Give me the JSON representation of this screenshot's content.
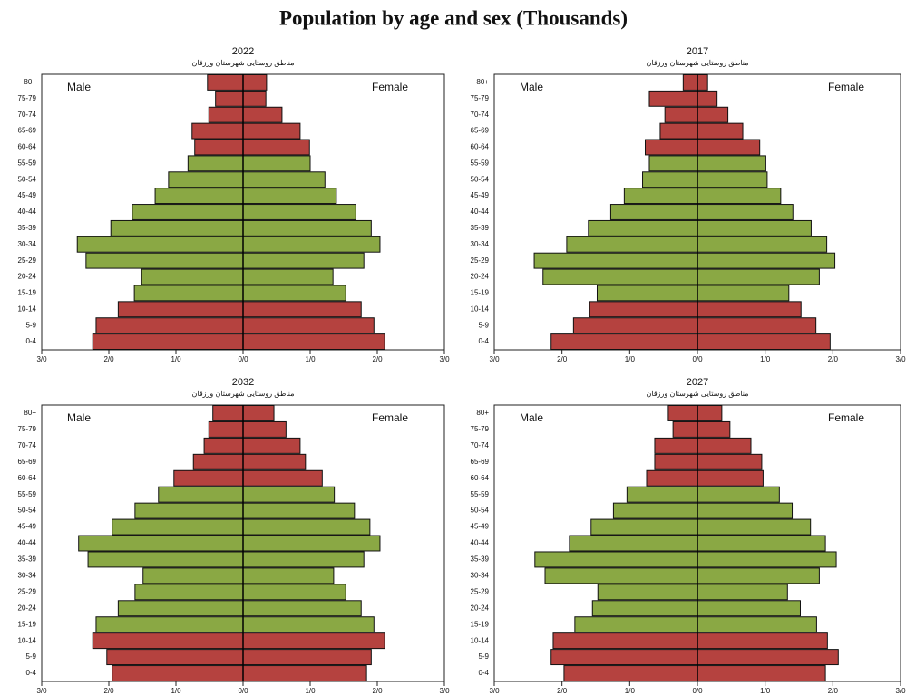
{
  "title": "Population by age and sex (Thousands)",
  "chart_data": [
    {
      "type": "pyramid",
      "title": "2022",
      "subtitle": "مناطق روستایی شهرستان ورزقان",
      "categories": [
        "0-4",
        "5-9",
        "10-14",
        "15-19",
        "20-24",
        "25-29",
        "30-34",
        "35-39",
        "40-44",
        "45-49",
        "50-54",
        "55-59",
        "60-64",
        "65-69",
        "70-74",
        "75-79",
        "80+"
      ],
      "colors": [
        "#b5423f",
        "#b5423f",
        "#b5423f",
        "#8aa844",
        "#8aa844",
        "#8aa844",
        "#8aa844",
        "#8aa844",
        "#8aa844",
        "#8aa844",
        "#8aa844",
        "#8aa844",
        "#b5423f",
        "#b5423f",
        "#b5423f",
        "#b5423f",
        "#b5423f"
      ],
      "series": [
        {
          "name": "Male",
          "values": [
            -2.24,
            -2.19,
            -1.86,
            -1.62,
            -1.51,
            -2.34,
            -2.47,
            -1.97,
            -1.65,
            -1.31,
            -1.11,
            -0.82,
            -0.72,
            -0.76,
            -0.51,
            -0.41,
            -0.53
          ]
        },
        {
          "name": "Female",
          "values": [
            2.11,
            1.95,
            1.76,
            1.53,
            1.34,
            1.8,
            2.04,
            1.91,
            1.68,
            1.39,
            1.22,
            1.0,
            0.99,
            0.85,
            0.58,
            0.34,
            0.35
          ]
        }
      ],
      "xlim": [
        -3,
        3
      ],
      "xticks": [
        {
          "value": -3,
          "label": "3/0"
        },
        {
          "value": -2,
          "label": "2/0"
        },
        {
          "value": -1,
          "label": "1/0"
        },
        {
          "value": 0,
          "label": "0/0"
        },
        {
          "value": 1,
          "label": "1/0"
        },
        {
          "value": 2,
          "label": "2/0"
        },
        {
          "value": 3,
          "label": "3/0"
        }
      ]
    },
    {
      "type": "pyramid",
      "title": "2017",
      "subtitle": "مناطق روستایی شهرستان ورزقان",
      "categories": [
        "0-4",
        "5-9",
        "10-14",
        "15-19",
        "20-24",
        "25-29",
        "30-34",
        "35-39",
        "40-44",
        "45-49",
        "50-54",
        "55-59",
        "60-64",
        "65-69",
        "70-74",
        "75-79",
        "80+"
      ],
      "colors": [
        "#b5423f",
        "#b5423f",
        "#b5423f",
        "#8aa844",
        "#8aa844",
        "#8aa844",
        "#8aa844",
        "#8aa844",
        "#8aa844",
        "#8aa844",
        "#8aa844",
        "#8aa844",
        "#b5423f",
        "#b5423f",
        "#b5423f",
        "#b5423f",
        "#b5423f"
      ],
      "series": [
        {
          "name": "Male",
          "values": [
            -2.16,
            -1.83,
            -1.59,
            -1.48,
            -2.28,
            -2.41,
            -1.93,
            -1.61,
            -1.28,
            -1.08,
            -0.81,
            -0.71,
            -0.77,
            -0.55,
            -0.48,
            -0.71,
            -0.21
          ]
        },
        {
          "name": "Female",
          "values": [
            1.96,
            1.75,
            1.53,
            1.35,
            1.8,
            2.03,
            1.91,
            1.68,
            1.41,
            1.23,
            1.03,
            1.01,
            0.92,
            0.67,
            0.45,
            0.29,
            0.15
          ]
        }
      ],
      "xlim": [
        -3,
        3
      ],
      "xticks": [
        {
          "value": -3,
          "label": "3/0"
        },
        {
          "value": -2,
          "label": "2/0"
        },
        {
          "value": -1,
          "label": "1/0"
        },
        {
          "value": 0,
          "label": "0/0"
        },
        {
          "value": 1,
          "label": "1/0"
        },
        {
          "value": 2,
          "label": "2/0"
        },
        {
          "value": 3,
          "label": "3/0"
        }
      ]
    },
    {
      "type": "pyramid",
      "title": "2032",
      "subtitle": "مناطق روستایی شهرستان ورزقان",
      "categories": [
        "0-4",
        "5-9",
        "10-14",
        "15-19",
        "20-24",
        "25-29",
        "30-34",
        "35-39",
        "40-44",
        "45-49",
        "50-54",
        "55-59",
        "60-64",
        "65-69",
        "70-74",
        "75-79",
        "80+"
      ],
      "colors": [
        "#b5423f",
        "#b5423f",
        "#b5423f",
        "#8aa844",
        "#8aa844",
        "#8aa844",
        "#8aa844",
        "#8aa844",
        "#8aa844",
        "#8aa844",
        "#8aa844",
        "#8aa844",
        "#b5423f",
        "#b5423f",
        "#b5423f",
        "#b5423f",
        "#b5423f"
      ],
      "series": [
        {
          "name": "Male",
          "values": [
            -1.95,
            -2.03,
            -2.24,
            -2.19,
            -1.86,
            -1.61,
            -1.49,
            -2.31,
            -2.45,
            -1.95,
            -1.61,
            -1.26,
            -1.03,
            -0.74,
            -0.58,
            -0.51,
            -0.45
          ]
        },
        {
          "name": "Female",
          "values": [
            1.84,
            1.91,
            2.11,
            1.95,
            1.76,
            1.53,
            1.35,
            1.8,
            2.04,
            1.89,
            1.66,
            1.36,
            1.18,
            0.93,
            0.85,
            0.64,
            0.46
          ]
        }
      ],
      "xlim": [
        -3,
        3
      ],
      "xticks": [
        {
          "value": -3,
          "label": "3/0"
        },
        {
          "value": -2,
          "label": "2/0"
        },
        {
          "value": -1,
          "label": "1/0"
        },
        {
          "value": 0,
          "label": "0/0"
        },
        {
          "value": 1,
          "label": "1/0"
        },
        {
          "value": 2,
          "label": "2/0"
        },
        {
          "value": 3,
          "label": "3/0"
        }
      ]
    },
    {
      "type": "pyramid",
      "title": "2027",
      "subtitle": "مناطق روستایی شهرستان ورزقان",
      "categories": [
        "0-4",
        "5-9",
        "10-14",
        "15-19",
        "20-24",
        "25-29",
        "30-34",
        "35-39",
        "40-44",
        "45-49",
        "50-54",
        "55-59",
        "60-64",
        "65-69",
        "70-74",
        "75-79",
        "80+"
      ],
      "colors": [
        "#b5423f",
        "#b5423f",
        "#b5423f",
        "#8aa844",
        "#8aa844",
        "#8aa844",
        "#8aa844",
        "#8aa844",
        "#8aa844",
        "#8aa844",
        "#8aa844",
        "#8aa844",
        "#b5423f",
        "#b5423f",
        "#b5423f",
        "#b5423f",
        "#b5423f"
      ],
      "series": [
        {
          "name": "Male",
          "values": [
            -1.97,
            -2.16,
            -2.13,
            -1.81,
            -1.55,
            -1.47,
            -2.25,
            -2.4,
            -1.89,
            -1.57,
            -1.24,
            -1.04,
            -0.75,
            -0.63,
            -0.63,
            -0.36,
            -0.43
          ]
        },
        {
          "name": "Female",
          "values": [
            1.89,
            2.08,
            1.92,
            1.76,
            1.52,
            1.33,
            1.8,
            2.05,
            1.89,
            1.67,
            1.4,
            1.21,
            0.97,
            0.95,
            0.79,
            0.48,
            0.36
          ]
        }
      ],
      "xlim": [
        -3,
        3
      ],
      "xticks": [
        {
          "value": -3,
          "label": "3/0"
        },
        {
          "value": -2,
          "label": "2/0"
        },
        {
          "value": -1,
          "label": "1/0"
        },
        {
          "value": 0,
          "label": "0/0"
        },
        {
          "value": 1,
          "label": "1/0"
        },
        {
          "value": 2,
          "label": "2/0"
        },
        {
          "value": 3,
          "label": "3/0"
        }
      ]
    }
  ]
}
